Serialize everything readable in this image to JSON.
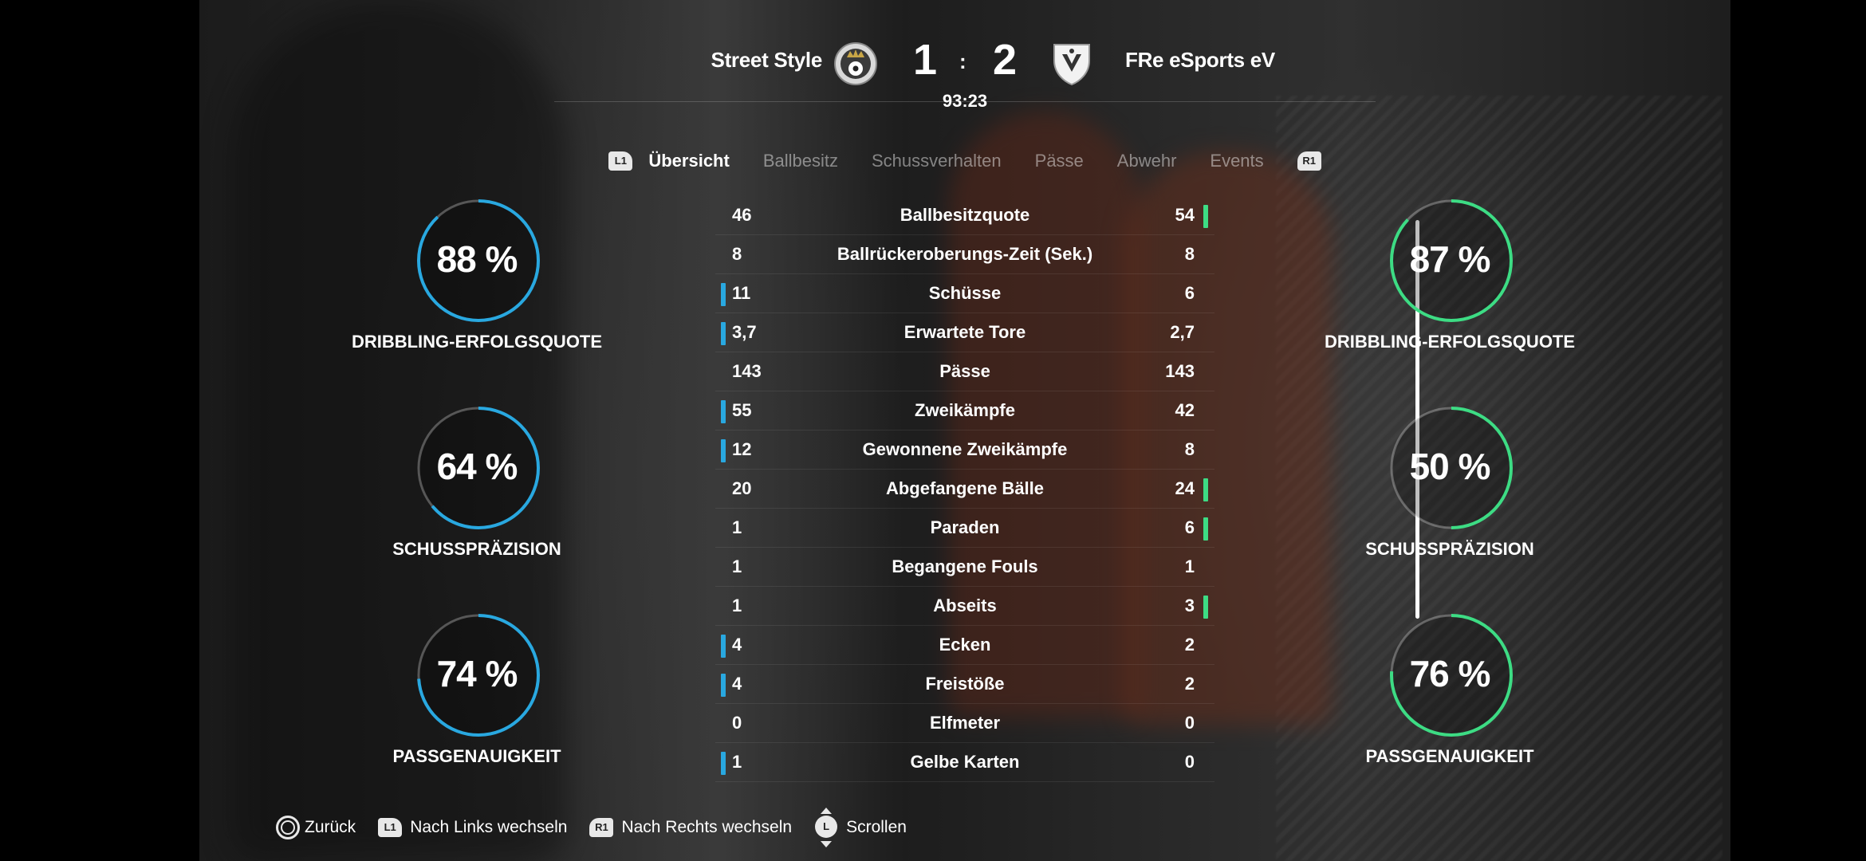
{
  "match": {
    "home_team": "Street Style",
    "away_team": "FRe eSports eV",
    "home_score": "1",
    "score_separator": ":",
    "away_score": "2",
    "clock": "93:23"
  },
  "tabs": {
    "left_shoulder": "L1",
    "right_shoulder": "R1",
    "items": [
      {
        "label": "Übersicht",
        "active": true
      },
      {
        "label": "Ballbesitz",
        "active": false
      },
      {
        "label": "Schussverhalten",
        "active": false
      },
      {
        "label": "Pässe",
        "active": false
      },
      {
        "label": "Abwehr",
        "active": false
      },
      {
        "label": "Events",
        "active": false
      }
    ]
  },
  "colors": {
    "home_accent": "#29a8e0",
    "away_accent": "#3ddc84"
  },
  "stats": [
    {
      "label": "Ballbesitzquote",
      "home": "46",
      "away": "54",
      "leader": "away"
    },
    {
      "label": "Ballrückeroberungs-Zeit (Sek.)",
      "home": "8",
      "away": "8",
      "leader": "none"
    },
    {
      "label": "Schüsse",
      "home": "11",
      "away": "6",
      "leader": "home"
    },
    {
      "label": "Erwartete Tore",
      "home": "3,7",
      "away": "2,7",
      "leader": "home"
    },
    {
      "label": "Pässe",
      "home": "143",
      "away": "143",
      "leader": "none"
    },
    {
      "label": "Zweikämpfe",
      "home": "55",
      "away": "42",
      "leader": "home"
    },
    {
      "label": "Gewonnene Zweikämpfe",
      "home": "12",
      "away": "8",
      "leader": "home"
    },
    {
      "label": "Abgefangene Bälle",
      "home": "20",
      "away": "24",
      "leader": "away"
    },
    {
      "label": "Paraden",
      "home": "1",
      "away": "6",
      "leader": "away"
    },
    {
      "label": "Begangene Fouls",
      "home": "1",
      "away": "1",
      "leader": "none"
    },
    {
      "label": "Abseits",
      "home": "1",
      "away": "3",
      "leader": "away"
    },
    {
      "label": "Ecken",
      "home": "4",
      "away": "2",
      "leader": "home"
    },
    {
      "label": "Freistöße",
      "home": "4",
      "away": "2",
      "leader": "home"
    },
    {
      "label": "Elfmeter",
      "home": "0",
      "away": "0",
      "leader": "none"
    },
    {
      "label": "Gelbe Karten",
      "home": "1",
      "away": "0",
      "leader": "home"
    }
  ],
  "rings": {
    "home": [
      {
        "value": "88 %",
        "fraction": 0.88,
        "label": "DRIBBLING-ERFOLGSQUOTE"
      },
      {
        "value": "64 %",
        "fraction": 0.64,
        "label": "SCHUSSPRÄZISION"
      },
      {
        "value": "74 %",
        "fraction": 0.74,
        "label": "PASSGENAUIGKEIT"
      }
    ],
    "away": [
      {
        "value": "87 %",
        "fraction": 0.87,
        "label": "DRIBBLING-ERFOLGSQUOTE"
      },
      {
        "value": "50 %",
        "fraction": 0.5,
        "label": "SCHUSSPRÄZISION"
      },
      {
        "value": "76 %",
        "fraction": 0.76,
        "label": "PASSGENAUIGKEIT"
      }
    ]
  },
  "footer": {
    "back_label": "Zurück",
    "l1_badge": "L1",
    "prev_label": "Nach Links wechseln",
    "r1_badge": "R1",
    "next_label": "Nach Rechts wechseln",
    "stick_badge": "L",
    "scroll_label": "Scrollen"
  }
}
